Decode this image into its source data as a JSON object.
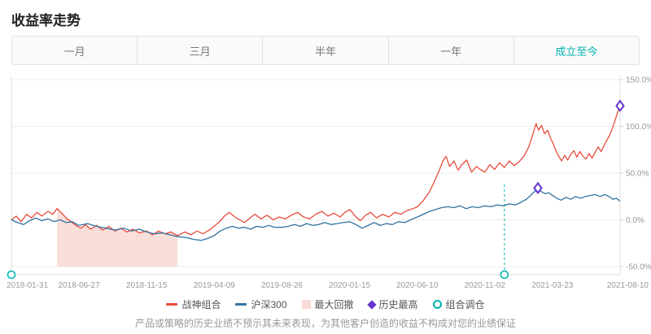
{
  "header": {
    "title": "收益率走势"
  },
  "tabs": [
    {
      "key": "1m",
      "label": "一月",
      "active": false
    },
    {
      "key": "3m",
      "label": "三月",
      "active": false
    },
    {
      "key": "6m",
      "label": "半年",
      "active": false
    },
    {
      "key": "1y",
      "label": "一年",
      "active": false
    },
    {
      "key": "inception",
      "label": "成立至今",
      "active": true
    }
  ],
  "chart_data": {
    "type": "line",
    "x_ticks": [
      "2018-01-31",
      "2018-06-27",
      "2018-11-15",
      "2019-04-09",
      "2019-08-26",
      "2020-01-15",
      "2020-06-10",
      "2020-11-02",
      "2021-03-23",
      "2021-08-10"
    ],
    "y_ticks": [
      {
        "value": 150,
        "label": "150.0%"
      },
      {
        "value": 100,
        "label": "100.0%"
      },
      {
        "value": 50,
        "label": "50.0%"
      },
      {
        "value": 0,
        "label": "0.0%"
      },
      {
        "value": -50,
        "label": "-50.0%"
      }
    ],
    "ylim": [
      -59,
      150
    ],
    "grid": true,
    "series": [
      {
        "name": "战神组合",
        "color": "#e64c3c",
        "points": [
          [
            0,
            0
          ],
          [
            0.008,
            4
          ],
          [
            0.016,
            -2
          ],
          [
            0.025,
            6
          ],
          [
            0.033,
            2
          ],
          [
            0.042,
            8
          ],
          [
            0.05,
            4
          ],
          [
            0.06,
            9
          ],
          [
            0.068,
            6
          ],
          [
            0.075,
            12
          ],
          [
            0.083,
            7
          ],
          [
            0.09,
            2
          ],
          [
            0.098,
            -2
          ],
          [
            0.106,
            -6
          ],
          [
            0.114,
            -9
          ],
          [
            0.122,
            -5
          ],
          [
            0.13,
            -10
          ],
          [
            0.14,
            -6
          ],
          [
            0.15,
            -11
          ],
          [
            0.16,
            -7
          ],
          [
            0.17,
            -12
          ],
          [
            0.18,
            -9
          ],
          [
            0.19,
            -13
          ],
          [
            0.2,
            -10
          ],
          [
            0.21,
            -14
          ],
          [
            0.222,
            -12
          ],
          [
            0.232,
            -16
          ],
          [
            0.242,
            -12
          ],
          [
            0.252,
            -15
          ],
          [
            0.262,
            -13
          ],
          [
            0.273,
            -17
          ],
          [
            0.285,
            -13
          ],
          [
            0.295,
            -16
          ],
          [
            0.305,
            -12
          ],
          [
            0.315,
            -15
          ],
          [
            0.325,
            -11
          ],
          [
            0.333,
            -7
          ],
          [
            0.342,
            -2
          ],
          [
            0.35,
            4
          ],
          [
            0.358,
            8
          ],
          [
            0.367,
            3
          ],
          [
            0.375,
            0
          ],
          [
            0.383,
            -3
          ],
          [
            0.392,
            2
          ],
          [
            0.4,
            6
          ],
          [
            0.41,
            1
          ],
          [
            0.42,
            5
          ],
          [
            0.43,
            0
          ],
          [
            0.44,
            3
          ],
          [
            0.45,
            1
          ],
          [
            0.46,
            5
          ],
          [
            0.47,
            8
          ],
          [
            0.48,
            3
          ],
          [
            0.49,
            1
          ],
          [
            0.5,
            6
          ],
          [
            0.51,
            9
          ],
          [
            0.52,
            4
          ],
          [
            0.53,
            7
          ],
          [
            0.54,
            3
          ],
          [
            0.548,
            8
          ],
          [
            0.556,
            11
          ],
          [
            0.565,
            4
          ],
          [
            0.573,
            -1
          ],
          [
            0.582,
            5
          ],
          [
            0.59,
            8
          ],
          [
            0.6,
            2
          ],
          [
            0.61,
            6
          ],
          [
            0.62,
            3
          ],
          [
            0.63,
            8
          ],
          [
            0.64,
            6
          ],
          [
            0.65,
            10
          ],
          [
            0.66,
            12
          ],
          [
            0.667,
            14
          ],
          [
            0.676,
            20
          ],
          [
            0.686,
            29
          ],
          [
            0.695,
            41
          ],
          [
            0.703,
            53
          ],
          [
            0.709,
            63
          ],
          [
            0.714,
            68
          ],
          [
            0.72,
            57
          ],
          [
            0.727,
            63
          ],
          [
            0.734,
            53
          ],
          [
            0.74,
            59
          ],
          [
            0.748,
            64
          ],
          [
            0.756,
            51
          ],
          [
            0.764,
            57
          ],
          [
            0.772,
            53
          ],
          [
            0.778,
            51
          ],
          [
            0.786,
            59
          ],
          [
            0.794,
            54
          ],
          [
            0.802,
            61
          ],
          [
            0.81,
            56
          ],
          [
            0.818,
            63
          ],
          [
            0.826,
            58
          ],
          [
            0.834,
            62
          ],
          [
            0.842,
            68
          ],
          [
            0.85,
            78
          ],
          [
            0.856,
            90
          ],
          [
            0.862,
            103
          ],
          [
            0.866,
            96
          ],
          [
            0.871,
            101
          ],
          [
            0.876,
            92
          ],
          [
            0.881,
            96
          ],
          [
            0.886,
            87
          ],
          [
            0.889,
            83
          ],
          [
            0.894,
            75
          ],
          [
            0.899,
            68
          ],
          [
            0.904,
            63
          ],
          [
            0.909,
            69
          ],
          [
            0.914,
            64
          ],
          [
            0.919,
            70
          ],
          [
            0.924,
            74
          ],
          [
            0.929,
            67
          ],
          [
            0.934,
            73
          ],
          [
            0.939,
            68
          ],
          [
            0.944,
            65
          ],
          [
            0.949,
            71
          ],
          [
            0.954,
            66
          ],
          [
            0.959,
            72
          ],
          [
            0.964,
            78
          ],
          [
            0.969,
            73
          ],
          [
            0.974,
            80
          ],
          [
            0.979,
            86
          ],
          [
            0.984,
            92
          ],
          [
            0.988,
            99
          ],
          [
            0.992,
            107
          ],
          [
            0.996,
            115
          ],
          [
            1,
            122
          ]
        ]
      },
      {
        "name": "沪深300",
        "color": "#3173a3",
        "points": [
          [
            0,
            0
          ],
          [
            0.01,
            -3
          ],
          [
            0.02,
            -5
          ],
          [
            0.03,
            -1
          ],
          [
            0.04,
            2
          ],
          [
            0.05,
            -1
          ],
          [
            0.06,
            1
          ],
          [
            0.07,
            -2
          ],
          [
            0.08,
            0
          ],
          [
            0.09,
            -3
          ],
          [
            0.1,
            -2
          ],
          [
            0.111,
            -6
          ],
          [
            0.125,
            -4
          ],
          [
            0.14,
            -7
          ],
          [
            0.155,
            -9
          ],
          [
            0.17,
            -11
          ],
          [
            0.185,
            -9
          ],
          [
            0.198,
            -12
          ],
          [
            0.21,
            -10
          ],
          [
            0.222,
            -13
          ],
          [
            0.235,
            -15
          ],
          [
            0.248,
            -14
          ],
          [
            0.26,
            -16
          ],
          [
            0.273,
            -18
          ],
          [
            0.287,
            -19
          ],
          [
            0.3,
            -21
          ],
          [
            0.312,
            -22
          ],
          [
            0.322,
            -20
          ],
          [
            0.333,
            -17
          ],
          [
            0.343,
            -12
          ],
          [
            0.353,
            -9
          ],
          [
            0.363,
            -7
          ],
          [
            0.373,
            -9
          ],
          [
            0.383,
            -8
          ],
          [
            0.393,
            -10
          ],
          [
            0.403,
            -7
          ],
          [
            0.413,
            -8
          ],
          [
            0.423,
            -6
          ],
          [
            0.433,
            -8
          ],
          [
            0.444,
            -8
          ],
          [
            0.455,
            -7
          ],
          [
            0.465,
            -5
          ],
          [
            0.475,
            -7
          ],
          [
            0.485,
            -4
          ],
          [
            0.495,
            -6
          ],
          [
            0.505,
            -5
          ],
          [
            0.515,
            -3
          ],
          [
            0.525,
            -5
          ],
          [
            0.535,
            -4
          ],
          [
            0.545,
            -3
          ],
          [
            0.556,
            -2
          ],
          [
            0.566,
            -5
          ],
          [
            0.576,
            -9
          ],
          [
            0.586,
            -6
          ],
          [
            0.596,
            -3
          ],
          [
            0.606,
            -6
          ],
          [
            0.616,
            -4
          ],
          [
            0.626,
            -5
          ],
          [
            0.636,
            -2
          ],
          [
            0.646,
            -3
          ],
          [
            0.656,
            0
          ],
          [
            0.667,
            3
          ],
          [
            0.677,
            6
          ],
          [
            0.687,
            9
          ],
          [
            0.697,
            11
          ],
          [
            0.707,
            13
          ],
          [
            0.717,
            14
          ],
          [
            0.727,
            13
          ],
          [
            0.737,
            15
          ],
          [
            0.747,
            12
          ],
          [
            0.757,
            14
          ],
          [
            0.767,
            13
          ],
          [
            0.778,
            15
          ],
          [
            0.788,
            14
          ],
          [
            0.798,
            16
          ],
          [
            0.808,
            15
          ],
          [
            0.818,
            17
          ],
          [
            0.828,
            16
          ],
          [
            0.838,
            19
          ],
          [
            0.846,
            22
          ],
          [
            0.853,
            26
          ],
          [
            0.859,
            30
          ],
          [
            0.865,
            34
          ],
          [
            0.871,
            30
          ],
          [
            0.877,
            28
          ],
          [
            0.883,
            29
          ],
          [
            0.889,
            26
          ],
          [
            0.896,
            23
          ],
          [
            0.903,
            21
          ],
          [
            0.911,
            24
          ],
          [
            0.919,
            22
          ],
          [
            0.927,
            25
          ],
          [
            0.935,
            23
          ],
          [
            0.943,
            25
          ],
          [
            0.951,
            26
          ],
          [
            0.959,
            27
          ],
          [
            0.967,
            25
          ],
          [
            0.975,
            27
          ],
          [
            0.982,
            25
          ],
          [
            0.988,
            22
          ],
          [
            0.994,
            23
          ],
          [
            1,
            20
          ]
        ]
      }
    ],
    "drawdown": {
      "label": "最大回撤",
      "color": "#f5bdb5",
      "start_t": 0.075,
      "end_t": 0.273,
      "bottom_value": -50
    },
    "historic_highs": {
      "label": "历史最高",
      "color": "#6633cc",
      "markers": [
        {
          "t": 0.865,
          "value": 34
        },
        {
          "t": 1,
          "value": 122
        }
      ]
    },
    "rebalances": {
      "label": "组合调仓",
      "color": "#00b3ad",
      "markers": [
        {
          "t": 0,
          "line_top_value": null
        },
        {
          "t": 0.81,
          "line_top_value": 40
        }
      ]
    }
  },
  "legend": [
    {
      "key": "portfolio",
      "label": "战神组合",
      "marker": "line",
      "color": "#e64c3c"
    },
    {
      "key": "benchmark",
      "label": "沪深300",
      "marker": "line",
      "color": "#3173a3"
    },
    {
      "key": "max-drawdown",
      "label": "最大回撤",
      "marker": "box",
      "color": "#f5bdb5"
    },
    {
      "key": "historic-high",
      "label": "历史最高",
      "marker": "diamond",
      "color": "#6633cc"
    },
    {
      "key": "rebalance",
      "label": "组合调仓",
      "marker": "ring",
      "color": "#00b3ad"
    }
  ],
  "footer": {
    "disclaimer": "产品或策略的历史业绩不预示其未来表现，为其他客户创造的收益不构成对您的业绩保证"
  }
}
